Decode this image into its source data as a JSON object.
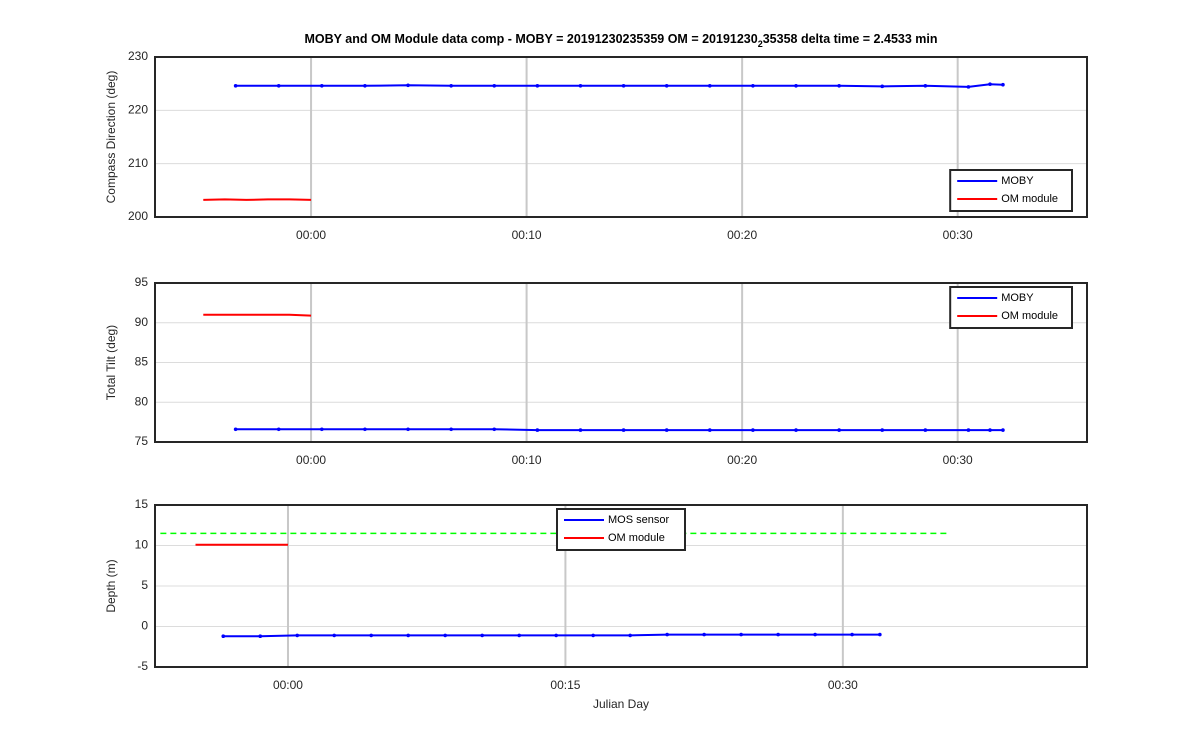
{
  "chart_data": [
    {
      "type": "line",
      "title_parts": [
        "MOBY and OM Module data comp - MOBY = 20191230235359 OM = 20191230",
        "2",
        "35358 delta time = 2.4533 min"
      ],
      "y_label": "Compass Direction (deg)",
      "xlim": [
        -7.24,
        36.0
      ],
      "xticks": [
        {
          "value": 0,
          "label": "00:00"
        },
        {
          "value": 10,
          "label": "00:10"
        },
        {
          "value": 20,
          "label": "00:20"
        },
        {
          "value": 30,
          "label": "00:30"
        }
      ],
      "ylim": [
        200,
        230
      ],
      "yticks": [
        200,
        210,
        220,
        230
      ],
      "grid": true,
      "legend": "southeast",
      "series": [
        {
          "name": "MOBY",
          "color": "#0000ff",
          "marker": true,
          "x": [
            -3.5,
            -1.5,
            0.5,
            2.5,
            4.5,
            6.5,
            8.5,
            10.5,
            12.5,
            14.5,
            16.5,
            18.5,
            20.5,
            22.5,
            24.5,
            26.5,
            28.5,
            30.5,
            31.5,
            32.1
          ],
          "values": [
            224.6,
            224.6,
            224.6,
            224.6,
            224.7,
            224.6,
            224.6,
            224.6,
            224.6,
            224.6,
            224.6,
            224.6,
            224.6,
            224.6,
            224.6,
            224.5,
            224.6,
            224.4,
            224.9,
            224.8
          ]
        },
        {
          "name": "OM module",
          "color": "#ff0000",
          "marker": false,
          "x": [
            -5,
            -4,
            -3,
            -2,
            -1,
            0
          ],
          "values": [
            203.2,
            203.3,
            203.2,
            203.3,
            203.3,
            203.2
          ]
        }
      ]
    },
    {
      "type": "line",
      "y_label": "Total Tilt (deg)",
      "xlim": [
        -7.24,
        36.0
      ],
      "xticks": [
        {
          "value": 0,
          "label": "00:00"
        },
        {
          "value": 10,
          "label": "00:10"
        },
        {
          "value": 20,
          "label": "00:20"
        },
        {
          "value": 30,
          "label": "00:30"
        }
      ],
      "ylim": [
        75,
        95
      ],
      "yticks": [
        75,
        80,
        85,
        90,
        95
      ],
      "grid": true,
      "legend": "northeast",
      "series": [
        {
          "name": "MOBY",
          "color": "#0000ff",
          "marker": true,
          "x": [
            -3.5,
            -1.5,
            0.5,
            2.5,
            4.5,
            6.5,
            8.5,
            10.5,
            12.5,
            14.5,
            16.5,
            18.5,
            20.5,
            22.5,
            24.5,
            26.5,
            28.5,
            30.5,
            31.5,
            32.1
          ],
          "values": [
            76.6,
            76.6,
            76.6,
            76.6,
            76.6,
            76.6,
            76.6,
            76.5,
            76.5,
            76.5,
            76.5,
            76.5,
            76.5,
            76.5,
            76.5,
            76.5,
            76.5,
            76.5,
            76.5,
            76.5
          ]
        },
        {
          "name": "OM module",
          "color": "#ff0000",
          "marker": false,
          "x": [
            -5,
            -4,
            -3,
            -2,
            -1,
            0
          ],
          "values": [
            91.0,
            91.0,
            91.0,
            91.0,
            91.0,
            90.9
          ]
        }
      ]
    },
    {
      "type": "line",
      "y_label": "Depth (m)",
      "x_label": "Julian Day",
      "xlim": [
        -7.19,
        43.2
      ],
      "xticks": [
        {
          "value": 0,
          "label": "00:00"
        },
        {
          "value": 15,
          "label": "00:15"
        },
        {
          "value": 30,
          "label": "00:30"
        }
      ],
      "ylim": [
        -5,
        15
      ],
      "yticks": [
        -5,
        0,
        5,
        10,
        15
      ],
      "grid": true,
      "legend": "north",
      "series": [
        {
          "name": "MOS sensor",
          "color": "#0000ff",
          "marker": true,
          "x": [
            -3.5,
            -1.5,
            0.5,
            2.5,
            4.5,
            6.5,
            8.5,
            10.5,
            12.5,
            14.5,
            16.5,
            18.5,
            20.5,
            22.5,
            24.5,
            26.5,
            28.5,
            30.5,
            32.0
          ],
          "values": [
            -1.2,
            -1.2,
            -1.1,
            -1.1,
            -1.1,
            -1.1,
            -1.1,
            -1.1,
            -1.1,
            -1.1,
            -1.1,
            -1.1,
            -1.0,
            -1.0,
            -1.0,
            -1.0,
            -1.0,
            -1.0,
            -1.0
          ]
        },
        {
          "name": "OM module",
          "color": "#ff0000",
          "marker": false,
          "x": [
            -5,
            0
          ],
          "values": [
            10.1,
            10.1
          ]
        },
        {
          "color": "#00ff00",
          "dash": true,
          "marker": false,
          "x": [
            -6.9,
            35.7
          ],
          "values": [
            11.5,
            11.5
          ]
        }
      ]
    }
  ]
}
